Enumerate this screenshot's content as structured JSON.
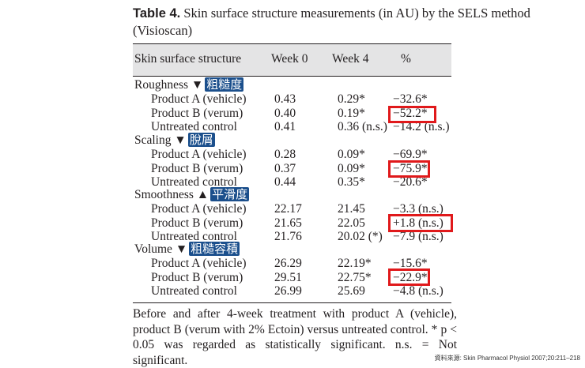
{
  "caption": {
    "label": "Table 4.",
    "text": " Skin surface structure measurements (in AU) by the SELS method (Visioscan)"
  },
  "header": {
    "structure": "Skin surface structure",
    "week0": "Week 0",
    "week4": "Week 4",
    "pct": "%"
  },
  "sections": [
    {
      "name": "Roughness ▼",
      "tag": "粗糙度",
      "rows": [
        {
          "label": "Product A (vehicle)",
          "week0": "0.43",
          "week4": "0.29*",
          "pct": "−32.6*"
        },
        {
          "label": "Product B (verum)",
          "week0": "0.40",
          "week4": "0.19*",
          "pct": "−52.2*"
        },
        {
          "label": "Untreated control",
          "week0": "0.41",
          "week4": "0.36 (n.s.)",
          "pct": "−14.2 (n.s.)"
        }
      ]
    },
    {
      "name": "Scaling ▼",
      "tag": "脫屑",
      "rows": [
        {
          "label": "Product A (vehicle)",
          "week0": "0.28",
          "week4": "0.09*",
          "pct": "−69.9*"
        },
        {
          "label": "Product B (verum)",
          "week0": "0.37",
          "week4": "0.09*",
          "pct": "−75.9*"
        },
        {
          "label": "Untreated control",
          "week0": "0.44",
          "week4": "0.35*",
          "pct": "−20.6*"
        }
      ]
    },
    {
      "name": "Smoothness ▲",
      "tag": "平滑度",
      "rows": [
        {
          "label": "Product A (vehicle)",
          "week0": "22.17",
          "week4": "21.45",
          "pct": "−3.3 (n.s.)"
        },
        {
          "label": "Product B (verum)",
          "week0": "21.65",
          "week4": "22.05",
          "pct": "+1.8 (n.s.)"
        },
        {
          "label": "Untreated control",
          "week0": "21.76",
          "week4": "20.02 (*)",
          "pct": "−7.9 (n.s.)"
        }
      ]
    },
    {
      "name": "Volume ▼",
      "tag": "粗糙容積",
      "rows": [
        {
          "label": "Product A (vehicle)",
          "week0": "26.29",
          "week4": "22.19*",
          "pct": "−15.6*"
        },
        {
          "label": "Product B (verum)",
          "week0": "29.51",
          "week4": "22.75*",
          "pct": "−22.9*"
        },
        {
          "label": "Untreated control",
          "week0": "26.99",
          "week4": "25.69",
          "pct": "−4.8 (n.s.)"
        }
      ]
    }
  ],
  "footnote": "Before and after 4-week treatment with product A (vehicle), product B (verum with 2% Ectoin) versus untreated control. * p < 0.05 was regarded as statistically significant. n.s. = Not significant.",
  "source": "資料來源: Skin Pharmacol Physiol 2007;20:211–218",
  "highlight_color": "#e0191b",
  "tag_color": "#1b4f8c"
}
